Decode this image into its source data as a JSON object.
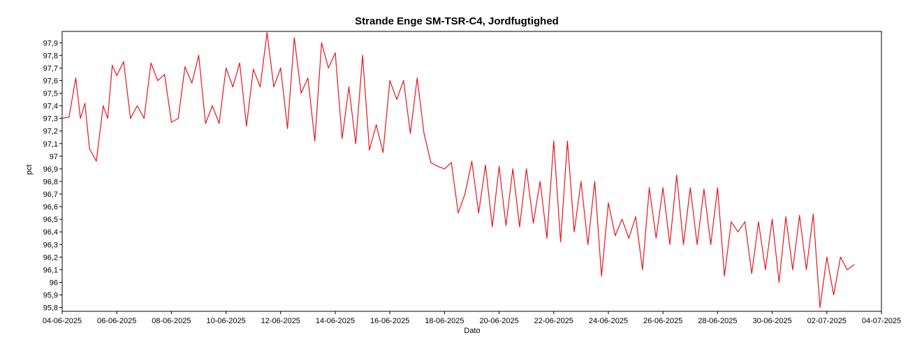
{
  "chart_data": {
    "type": "line",
    "title": "Strande Enge SM-TSR-C4, Jordfugtighed",
    "xlabel": "Dato",
    "ylabel": "pct",
    "grid": true,
    "ylim": [
      95.77,
      97.99
    ],
    "xlim": [
      "2025-06-04",
      "2025-07-04"
    ],
    "x_tick_labels": [
      "04-06-2025",
      "06-06-2025",
      "08-06-2025",
      "10-06-2025",
      "12-06-2025",
      "14-06-2025",
      "16-06-2025",
      "18-06-2025",
      "20-06-2025",
      "22-06-2025",
      "24-06-2025",
      "26-06-2025",
      "28-06-2025",
      "30-06-2025",
      "02-07-2025",
      "04-07-2025"
    ],
    "y_tick_labels": [
      "95,8",
      "95,9",
      "96",
      "96,1",
      "96,2",
      "96,3",
      "96,4",
      "96,5",
      "96,6",
      "96,7",
      "96,8",
      "96,9",
      "97",
      "97,1",
      "97,2",
      "97,3",
      "97,4",
      "97,5",
      "97,6",
      "97,7",
      "97,8",
      "97,9"
    ],
    "line_color": "#e8141c",
    "series": [
      {
        "x": [
          "2025-06-04",
          "2025-06-04T06:00",
          "2025-06-04T12:00",
          "2025-06-04T16:00",
          "2025-06-04T20:00",
          "2025-06-05",
          "2025-06-05T06:00",
          "2025-06-05T12:00",
          "2025-06-05T16:00",
          "2025-06-05T20:00",
          "2025-06-06",
          "2025-06-06T06:00",
          "2025-06-06T12:00",
          "2025-06-06T18:00",
          "2025-06-07",
          "2025-06-07T06:00",
          "2025-06-07T12:00",
          "2025-06-07T18:00",
          "2025-06-08",
          "2025-06-08T06:00",
          "2025-06-08T12:00",
          "2025-06-08T18:00",
          "2025-06-09",
          "2025-06-09T06:00",
          "2025-06-09T12:00",
          "2025-06-09T18:00",
          "2025-06-10",
          "2025-06-10T06:00",
          "2025-06-10T12:00",
          "2025-06-10T18:00",
          "2025-06-11",
          "2025-06-11T06:00",
          "2025-06-11T12:00",
          "2025-06-11T18:00",
          "2025-06-12",
          "2025-06-12T06:00",
          "2025-06-12T12:00",
          "2025-06-12T18:00",
          "2025-06-13",
          "2025-06-13T06:00",
          "2025-06-13T12:00",
          "2025-06-13T18:00",
          "2025-06-14",
          "2025-06-14T06:00",
          "2025-06-14T12:00",
          "2025-06-14T18:00",
          "2025-06-15",
          "2025-06-15T06:00",
          "2025-06-15T12:00",
          "2025-06-15T18:00",
          "2025-06-16",
          "2025-06-16T06:00",
          "2025-06-16T12:00",
          "2025-06-16T18:00",
          "2025-06-17",
          "2025-06-17T06:00",
          "2025-06-17T12:00",
          "2025-06-17T18:00",
          "2025-06-18",
          "2025-06-18T06:00",
          "2025-06-18T12:00",
          "2025-06-18T18:00",
          "2025-06-19",
          "2025-06-19T06:00",
          "2025-06-19T12:00",
          "2025-06-19T18:00",
          "2025-06-20",
          "2025-06-20T06:00",
          "2025-06-20T12:00",
          "2025-06-20T18:00",
          "2025-06-21",
          "2025-06-21T06:00",
          "2025-06-21T12:00",
          "2025-06-21T18:00",
          "2025-06-22",
          "2025-06-22T06:00",
          "2025-06-22T12:00",
          "2025-06-22T18:00",
          "2025-06-23",
          "2025-06-23T06:00",
          "2025-06-23T12:00",
          "2025-06-23T18:00",
          "2025-06-24",
          "2025-06-24T06:00",
          "2025-06-24T12:00",
          "2025-06-24T18:00",
          "2025-06-25",
          "2025-06-25T06:00",
          "2025-06-25T12:00",
          "2025-06-25T18:00",
          "2025-06-26",
          "2025-06-26T06:00",
          "2025-06-26T12:00",
          "2025-06-26T18:00",
          "2025-06-27",
          "2025-06-27T06:00",
          "2025-06-27T12:00",
          "2025-06-27T18:00",
          "2025-06-28",
          "2025-06-28T06:00",
          "2025-06-28T12:00",
          "2025-06-28T18:00",
          "2025-06-29",
          "2025-06-29T06:00",
          "2025-06-29T12:00",
          "2025-06-29T18:00",
          "2025-06-30",
          "2025-06-30T06:00",
          "2025-06-30T12:00",
          "2025-06-30T18:00",
          "2025-07-01",
          "2025-07-01T06:00",
          "2025-07-01T12:00",
          "2025-07-01T18:00",
          "2025-07-02",
          "2025-07-02T06:00",
          "2025-07-02T12:00",
          "2025-07-02T18:00",
          "2025-07-03"
        ],
        "y": [
          97.3,
          97.31,
          97.62,
          97.3,
          97.42,
          97.06,
          96.96,
          97.4,
          97.3,
          97.72,
          97.64,
          97.75,
          97.3,
          97.4,
          97.3,
          97.74,
          97.6,
          97.65,
          97.27,
          97.3,
          97.71,
          97.58,
          97.8,
          97.26,
          97.4,
          97.26,
          97.7,
          97.55,
          97.74,
          97.24,
          97.69,
          97.55,
          97.98,
          97.55,
          97.7,
          97.22,
          97.94,
          97.5,
          97.62,
          97.12,
          97.9,
          97.7,
          97.82,
          97.14,
          97.55,
          97.1,
          97.8,
          97.05,
          97.25,
          97.03,
          97.6,
          97.45,
          97.6,
          97.18,
          97.62,
          97.18,
          96.95,
          96.92,
          96.9,
          96.95,
          96.55,
          96.7,
          96.96,
          96.55,
          96.93,
          96.44,
          96.92,
          96.45,
          96.9,
          96.44,
          96.9,
          96.47,
          96.8,
          96.35,
          97.12,
          96.32,
          97.12,
          96.4,
          96.8,
          96.3,
          96.8,
          96.05,
          96.63,
          96.37,
          96.5,
          96.35,
          96.52,
          96.1,
          96.75,
          96.35,
          96.75,
          96.3,
          96.85,
          96.3,
          96.75,
          96.3,
          96.74,
          96.3,
          96.75,
          96.05,
          96.48,
          96.4,
          96.48,
          96.07,
          96.48,
          96.1,
          96.5,
          96.0,
          96.52,
          96.1,
          96.53,
          96.1,
          96.54,
          95.8,
          96.2,
          95.9,
          96.2,
          96.1,
          96.14
        ]
      }
    ]
  }
}
